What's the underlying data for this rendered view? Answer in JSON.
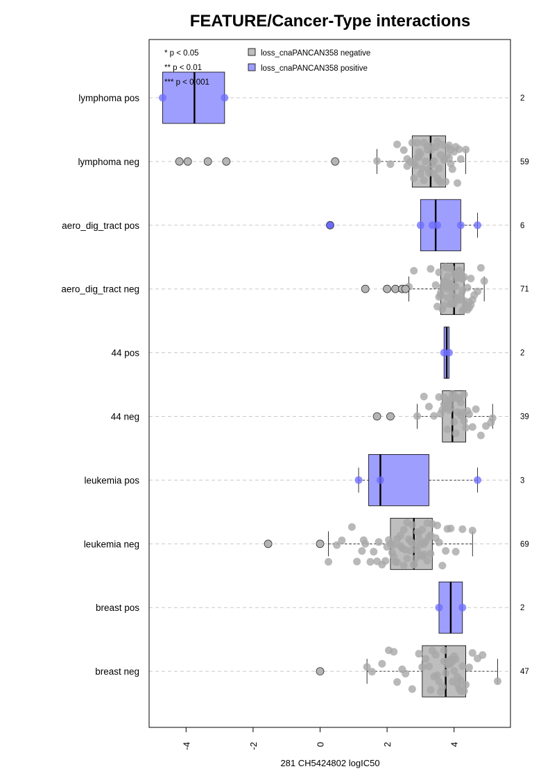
{
  "chart_data": {
    "type": "box",
    "title": "FEATURE/Cancer-Type interactions",
    "xlabel": "281 CH5424802 logIC50",
    "xlim": [
      -5.2,
      5.6
    ],
    "x_ticks": [
      -4,
      -2,
      0,
      2,
      4
    ],
    "x_tick_labels": [
      "-4",
      "-2",
      "0",
      "2",
      "4"
    ],
    "grid": "horizontal dashed",
    "legend": {
      "placement": "top",
      "entries": [
        {
          "label": "loss_cnaPANCAN358 negative",
          "color": "#bebebe"
        },
        {
          "label": "loss_cnaPANCAN358 positive",
          "color": "#9e9eff"
        }
      ]
    },
    "significance_legend": [
      "* p < 0.05",
      "** p < 0.01",
      "*** p < 0.001"
    ],
    "colors": {
      "negative_box": "#bebebe",
      "positive_box": "#9e9eff",
      "negative_point": "#a8a8a8",
      "positive_point": "#6b6bff",
      "grid": "#c8c8c8"
    },
    "groups": [
      {
        "label": "lymphoma pos",
        "n": "2",
        "status": "positive",
        "whisker_low": -4.7,
        "q1": -4.7,
        "median": -3.75,
        "q3": -2.85,
        "whisker_high": -2.85,
        "points": [
          -4.7,
          -2.85
        ],
        "outliers": []
      },
      {
        "label": "lymphoma neg",
        "n": "59",
        "status": "negative",
        "whisker_low": 1.7,
        "q1": 2.75,
        "median": 3.3,
        "q3": 3.75,
        "whisker_high": 4.35,
        "points": [
          1.7,
          2.1,
          2.3,
          2.5,
          2.6,
          2.7,
          2.75,
          2.8,
          2.85,
          2.9,
          2.95,
          3.0,
          3.05,
          3.1,
          3.15,
          3.2,
          3.25,
          3.3,
          3.35,
          3.4,
          3.45,
          3.5,
          3.55,
          3.6,
          3.65,
          3.7,
          3.75,
          3.8,
          3.85,
          3.9,
          3.95,
          4.0,
          4.05,
          4.1,
          4.2,
          4.35,
          2.8,
          3.0,
          3.2,
          3.4,
          3.6,
          3.8,
          2.9,
          3.1,
          3.3,
          3.5,
          3.7,
          3.9,
          2.6,
          2.95,
          3.25,
          3.55,
          3.85,
          4.15
        ],
        "outliers": [
          -4.2,
          -3.95,
          -3.35,
          -2.8,
          0.45
        ]
      },
      {
        "label": "aero_dig_tract pos",
        "n": "6",
        "status": "positive",
        "whisker_low": 3.0,
        "q1": 3.0,
        "median": 3.45,
        "q3": 4.2,
        "whisker_high": 4.7,
        "points": [
          3.0,
          3.35,
          3.5,
          4.2,
          4.7
        ],
        "outliers": [
          0.3
        ]
      },
      {
        "label": "aero_dig_tract neg",
        "n": "71",
        "status": "negative",
        "whisker_low": 2.65,
        "q1": 3.6,
        "median": 4.0,
        "q3": 4.3,
        "whisker_high": 4.9,
        "points": [
          2.65,
          2.8,
          3.3,
          3.45,
          3.55,
          3.6,
          3.65,
          3.7,
          3.75,
          3.8,
          3.85,
          3.9,
          3.95,
          4.0,
          4.05,
          4.1,
          4.15,
          4.2,
          4.25,
          4.3,
          4.35,
          4.4,
          4.45,
          4.5,
          4.55,
          4.6,
          4.7,
          4.8,
          4.9,
          3.7,
          3.8,
          3.9,
          4.0,
          4.1,
          4.2,
          4.3,
          3.75,
          3.85,
          3.95,
          4.05,
          4.15,
          4.25,
          3.65,
          4.35,
          3.6,
          4.4,
          3.55,
          4.45,
          3.5,
          4.5,
          3.9,
          4.0,
          4.1,
          3.8,
          4.2,
          3.7,
          4.3,
          3.95,
          4.05,
          3.85,
          4.15,
          3.75,
          4.25,
          4.0,
          3.9,
          4.1
        ],
        "outliers": [
          1.35,
          2.0,
          2.25,
          2.45,
          2.55
        ]
      },
      {
        "label": "44 pos",
        "n": "2",
        "status": "positive",
        "whisker_low": 3.7,
        "q1": 3.7,
        "median": 3.78,
        "q3": 3.85,
        "whisker_high": 3.85,
        "points": [
          3.7,
          3.85
        ],
        "outliers": []
      },
      {
        "label": "44 neg",
        "n": "39",
        "status": "negative",
        "whisker_low": 2.9,
        "q1": 3.65,
        "median": 3.95,
        "q3": 4.35,
        "whisker_high": 5.15,
        "points": [
          2.9,
          3.1,
          3.25,
          3.4,
          3.55,
          3.65,
          3.7,
          3.75,
          3.8,
          3.85,
          3.9,
          3.95,
          4.0,
          4.05,
          4.1,
          4.15,
          4.2,
          4.25,
          4.3,
          4.35,
          4.45,
          4.55,
          4.65,
          4.8,
          4.95,
          5.1,
          3.75,
          3.85,
          3.95,
          4.05,
          4.15,
          3.7,
          4.2,
          3.9,
          4.0,
          4.3,
          3.6,
          4.4,
          5.15
        ],
        "outliers": [
          1.7,
          2.1
        ]
      },
      {
        "label": "leukemia pos",
        "n": "3",
        "status": "positive",
        "whisker_low": 1.15,
        "q1": 1.45,
        "median": 1.8,
        "q3": 3.25,
        "whisker_high": 4.7,
        "points": [
          1.15,
          1.8,
          4.7
        ],
        "outliers": []
      },
      {
        "label": "leukemia neg",
        "n": "69",
        "status": "negative",
        "whisker_low": 0.25,
        "q1": 2.1,
        "median": 2.8,
        "q3": 3.35,
        "whisker_high": 4.55,
        "points": [
          0.25,
          0.5,
          0.65,
          0.95,
          1.1,
          1.25,
          1.35,
          1.5,
          1.6,
          1.75,
          1.85,
          1.95,
          2.05,
          2.1,
          2.15,
          2.2,
          2.3,
          2.4,
          2.5,
          2.55,
          2.6,
          2.7,
          2.75,
          2.8,
          2.85,
          2.9,
          2.95,
          3.0,
          3.05,
          3.1,
          3.15,
          3.2,
          3.3,
          3.35,
          3.45,
          3.55,
          3.65,
          3.75,
          3.9,
          4.05,
          4.25,
          4.55,
          2.2,
          2.4,
          2.6,
          2.8,
          3.0,
          3.2,
          2.3,
          2.5,
          2.7,
          2.9,
          3.1,
          3.3,
          2.25,
          2.45,
          2.65,
          2.85,
          3.05,
          3.25,
          1.3,
          1.7,
          2.0,
          3.5,
          3.8,
          2.75,
          2.95
        ],
        "outliers": [
          -1.55,
          0.0
        ]
      },
      {
        "label": "breast pos",
        "n": "2",
        "status": "positive",
        "whisker_low": 3.55,
        "q1": 3.55,
        "median": 3.9,
        "q3": 4.25,
        "whisker_high": 4.25,
        "points": [
          3.55,
          4.25
        ],
        "outliers": []
      },
      {
        "label": "breast neg",
        "n": "47",
        "status": "negative",
        "whisker_low": 1.4,
        "q1": 3.05,
        "median": 3.75,
        "q3": 4.35,
        "whisker_high": 5.3,
        "points": [
          1.4,
          1.55,
          1.85,
          2.05,
          2.2,
          2.3,
          2.45,
          2.55,
          2.75,
          2.95,
          3.05,
          3.15,
          3.25,
          3.35,
          3.45,
          3.55,
          3.65,
          3.7,
          3.75,
          3.8,
          3.85,
          3.9,
          3.95,
          4.0,
          4.05,
          4.1,
          4.15,
          4.2,
          4.25,
          4.3,
          4.35,
          4.45,
          4.55,
          4.7,
          4.85,
          5.3,
          3.5,
          3.6,
          3.7,
          3.8,
          3.9,
          4.0,
          3.3,
          3.4,
          4.1,
          4.2,
          3.95
        ],
        "outliers": [
          0.0
        ]
      }
    ]
  }
}
